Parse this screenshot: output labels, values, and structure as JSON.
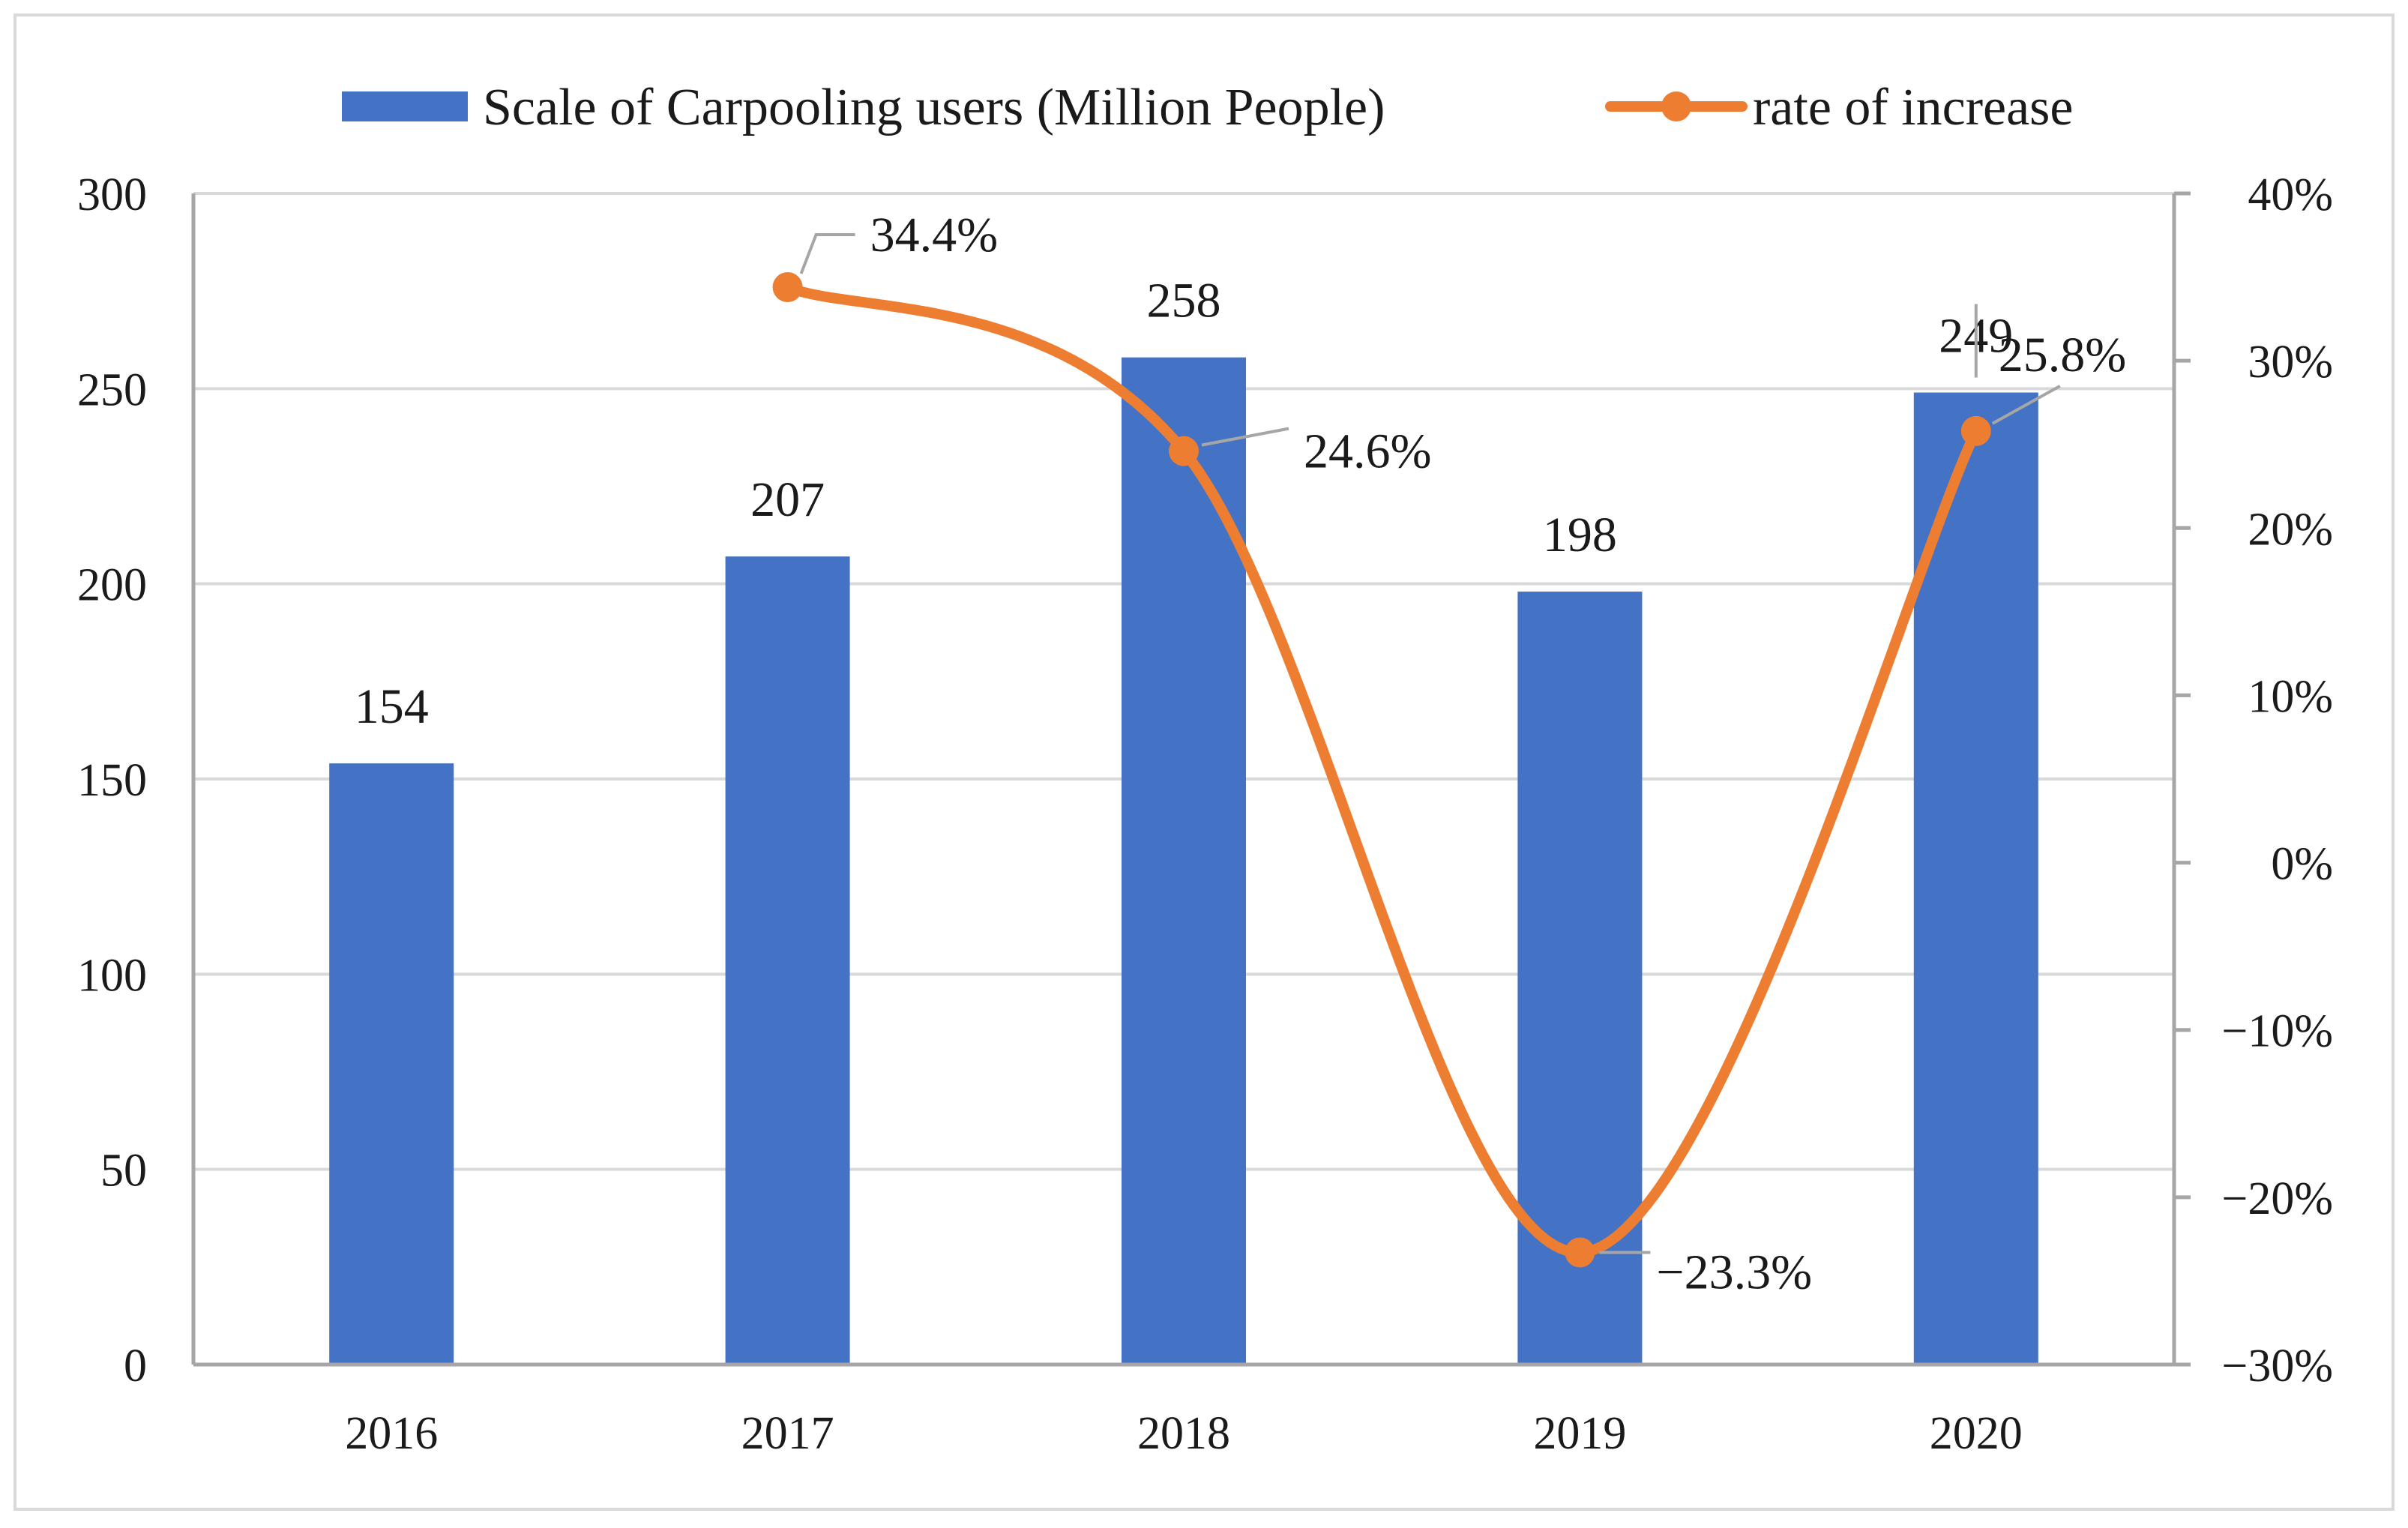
{
  "chart_data": {
    "type": "bar",
    "categories": [
      "2016",
      "2017",
      "2018",
      "2019",
      "2020"
    ],
    "series": [
      {
        "name": "Scale of Carpooling users (Million People)",
        "type": "bar",
        "axis": "left",
        "values": [
          154,
          207,
          258,
          198,
          249
        ],
        "labels": [
          "154",
          "207",
          "258",
          "198",
          "249"
        ],
        "color": "#4472C4"
      },
      {
        "name": "rate of increase",
        "type": "line",
        "axis": "right",
        "smooth": true,
        "values": [
          null,
          34.4,
          24.6,
          -23.3,
          25.8
        ],
        "labels": [
          null,
          "34.4%",
          "24.6%",
          "−23.3%",
          "25.8%"
        ],
        "color": "#ED7D31"
      }
    ],
    "y_left": {
      "ylim": [
        0,
        300
      ],
      "ticks": [
        0,
        50,
        100,
        150,
        200,
        250,
        300
      ],
      "tick_labels": [
        "0",
        "50",
        "100",
        "150",
        "200",
        "250",
        "300"
      ]
    },
    "y_right": {
      "ylim": [
        -30,
        40
      ],
      "ticks": [
        -30,
        -20,
        -10,
        0,
        10,
        20,
        30,
        40
      ],
      "tick_labels": [
        "−30%",
        "−20%",
        "−10%",
        "0%",
        "10%",
        "20%",
        "30%",
        "40%"
      ]
    },
    "grid": true,
    "legend": "top-center",
    "title": "",
    "xlabel": "",
    "ylabel": "",
    "colors": {
      "grid": "#d9d9d9",
      "axis": "#a6a6a6",
      "leader": "#a6a6a6"
    }
  }
}
